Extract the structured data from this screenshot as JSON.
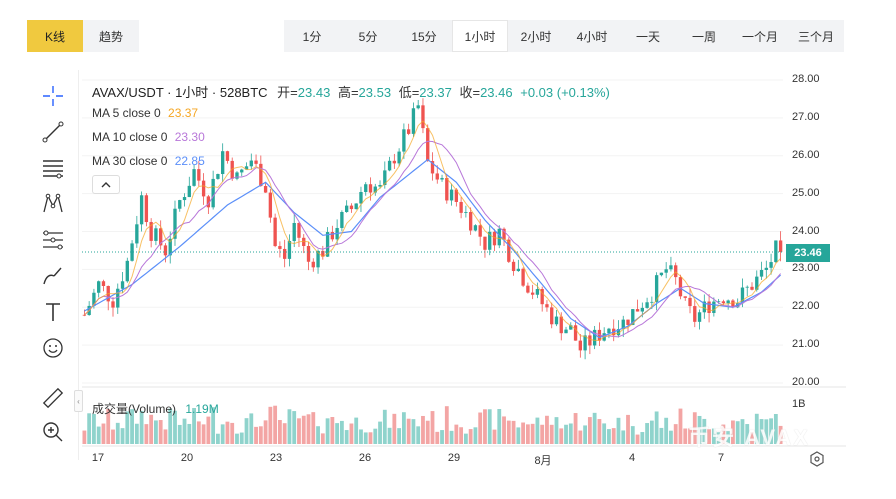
{
  "view_tabs": [
    {
      "label": "K线",
      "active": true
    },
    {
      "label": "趋势",
      "active": false
    }
  ],
  "timeframes": [
    {
      "label": "1分",
      "active": false
    },
    {
      "label": "5分",
      "active": false
    },
    {
      "label": "15分",
      "active": false
    },
    {
      "label": "1小时",
      "active": true
    },
    {
      "label": "2小时",
      "active": false
    },
    {
      "label": "4小时",
      "active": false
    },
    {
      "label": "一天",
      "active": false
    },
    {
      "label": "一周",
      "active": false
    },
    {
      "label": "一个月",
      "active": false
    },
    {
      "label": "三个月",
      "active": false
    }
  ],
  "tools": [
    "crosshair-icon",
    "trendline-icon",
    "horizontal-lines-icon",
    "pattern-icon",
    "fib-icon",
    "brush-icon",
    "text-icon",
    "emoji-icon",
    "ruler-icon",
    "zoom-in-icon"
  ],
  "legend": {
    "symbol": "AVAX/USDT · 1小时 · 528BTC",
    "open_label": "开=",
    "open": "23.43",
    "high_label": "高=",
    "high": "23.53",
    "low_label": "低=",
    "low": "23.37",
    "close_label": "收=",
    "close": "23.46",
    "change": "+0.03 (+0.13%)",
    "ma5_label": "MA 5 close 0",
    "ma5_value": "23.37",
    "ma10_label": "MA 10 close 0",
    "ma10_value": "23.30",
    "ma30_label": "MA 30 close 0",
    "ma30_value": "22.85",
    "volume_label": "成交量(Volume)",
    "volume_value": "1.19M"
  },
  "colors": {
    "up": "#26a69a",
    "down": "#ef5350",
    "ma5": "#f5a623",
    "ma10": "#b877d9",
    "ma30": "#5b8ff9",
    "accent": "#f0c93f"
  },
  "current_price": "23.46",
  "yaxis_labels": [
    "28.00",
    "27.00",
    "26.00",
    "25.00",
    "24.00",
    "23.00",
    "22.00",
    "21.00",
    "20.00"
  ],
  "volume_axis_label": "1B",
  "xaxis_labels": [
    "17",
    "20",
    "23",
    "26",
    "29",
    "8月",
    "4",
    "7"
  ],
  "watermark": "币安 AVAX",
  "chart_data": {
    "type": "candlestick",
    "interval": "1h",
    "ylim": [
      20,
      28
    ],
    "x_ticks": [
      "17",
      "20",
      "23",
      "26",
      "29",
      "8月",
      "4",
      "7"
    ],
    "close_path": [
      [
        0,
        21.8
      ],
      [
        3,
        22.6
      ],
      [
        6,
        22.2
      ],
      [
        9,
        23.2
      ],
      [
        12,
        24.9
      ],
      [
        14,
        24.0
      ],
      [
        17,
        23.5
      ],
      [
        20,
        24.8
      ],
      [
        23,
        25.6
      ],
      [
        26,
        24.9
      ],
      [
        29,
        26.1
      ],
      [
        32,
        25.4
      ],
      [
        35,
        25.9
      ],
      [
        38,
        25.2
      ],
      [
        40,
        23.6
      ],
      [
        42,
        23.3
      ],
      [
        44,
        24.2
      ],
      [
        47,
        23.2
      ],
      [
        50,
        23.5
      ],
      [
        53,
        24.2
      ],
      [
        56,
        24.6
      ],
      [
        59,
        25.3
      ],
      [
        62,
        25.1
      ],
      [
        65,
        26.0
      ],
      [
        68,
        26.7
      ],
      [
        70,
        27.3
      ],
      [
        72,
        25.8
      ],
      [
        75,
        25.2
      ],
      [
        78,
        24.8
      ],
      [
        81,
        24.3
      ],
      [
        84,
        23.7
      ],
      [
        87,
        24.0
      ],
      [
        90,
        23.2
      ],
      [
        93,
        22.6
      ],
      [
        96,
        22.1
      ],
      [
        99,
        21.6
      ],
      [
        102,
        21.4
      ],
      [
        104,
        20.9
      ],
      [
        107,
        21.2
      ],
      [
        110,
        21.5
      ],
      [
        113,
        21.6
      ],
      [
        116,
        22.0
      ],
      [
        119,
        22.4
      ],
      [
        122,
        23.0
      ],
      [
        124,
        22.7
      ],
      [
        126,
        22.0
      ],
      [
        128,
        21.7
      ],
      [
        131,
        22.1
      ],
      [
        134,
        22.3
      ],
      [
        137,
        22.2
      ],
      [
        140,
        22.6
      ],
      [
        143,
        23.0
      ],
      [
        145,
        23.5
      ],
      [
        146,
        23.46
      ]
    ],
    "ma30_path": [
      [
        0,
        21.9
      ],
      [
        10,
        22.6
      ],
      [
        20,
        23.6
      ],
      [
        30,
        24.7
      ],
      [
        38,
        25.3
      ],
      [
        44,
        24.5
      ],
      [
        50,
        23.9
      ],
      [
        56,
        24.0
      ],
      [
        62,
        24.9
      ],
      [
        68,
        25.5
      ],
      [
        72,
        25.9
      ],
      [
        78,
        25.3
      ],
      [
        84,
        24.3
      ],
      [
        90,
        23.5
      ],
      [
        96,
        22.6
      ],
      [
        102,
        21.7
      ],
      [
        108,
        21.2
      ],
      [
        114,
        21.5
      ],
      [
        120,
        22.1
      ],
      [
        125,
        22.5
      ],
      [
        130,
        22.1
      ],
      [
        136,
        22.0
      ],
      [
        142,
        22.4
      ],
      [
        146,
        22.85
      ]
    ]
  }
}
